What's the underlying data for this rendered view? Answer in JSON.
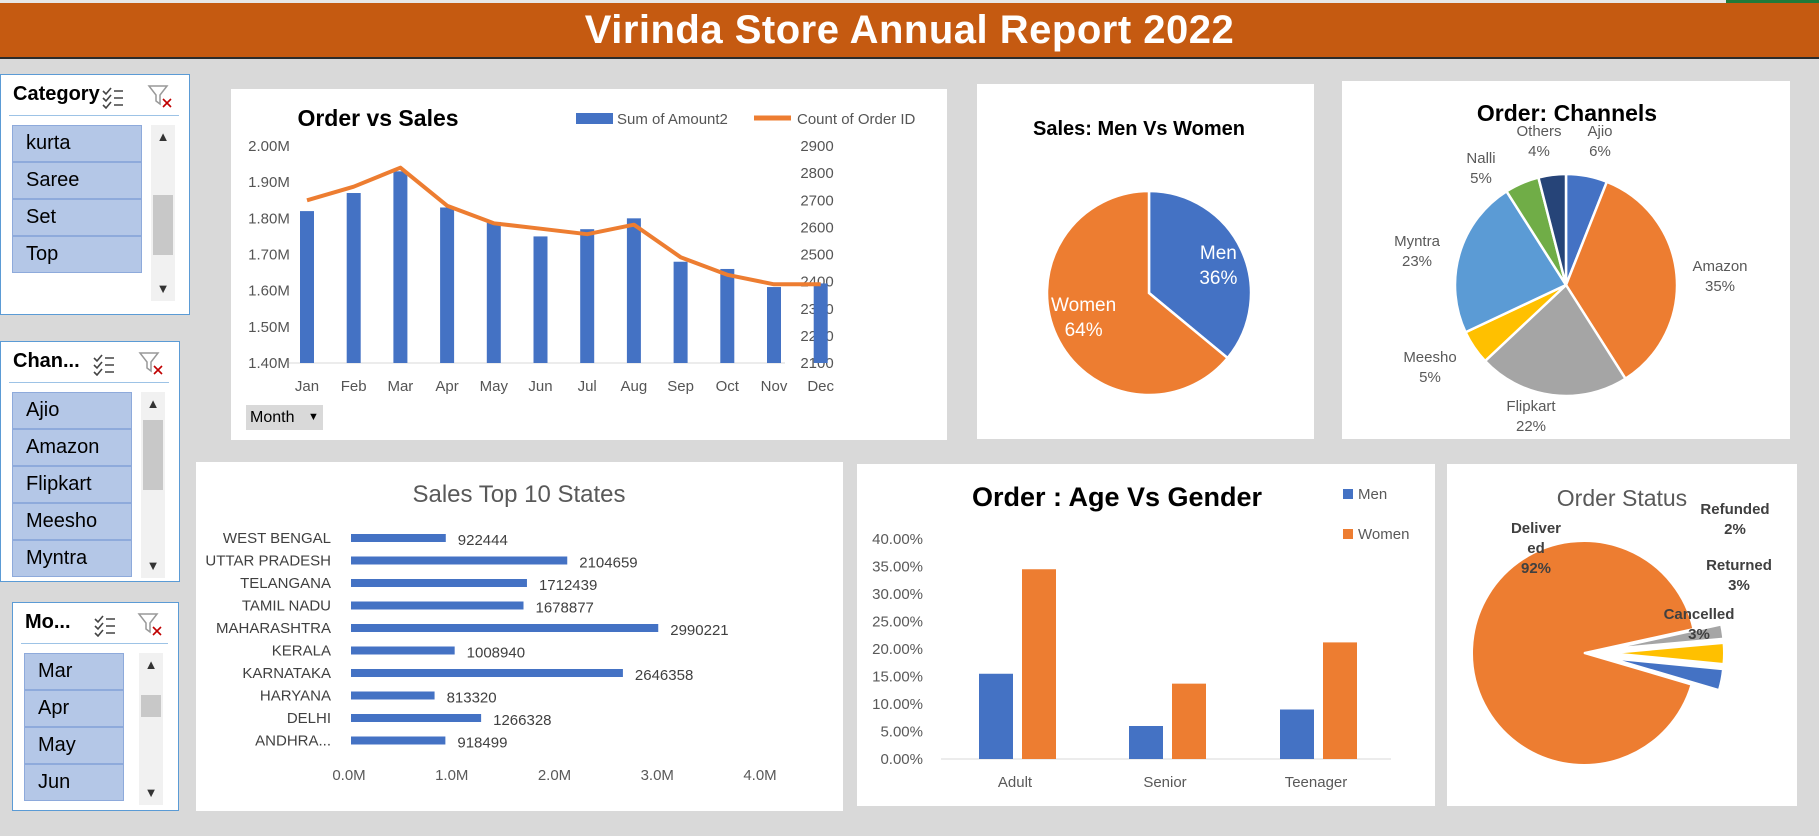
{
  "title": "Virinda Store Annual Report 2022",
  "order_vs_sales": {
    "month_button": "Month",
    "chart_data": {
      "type": "bar",
      "title": "Order vs Sales",
      "categories": [
        "Jan",
        "Feb",
        "Mar",
        "Apr",
        "May",
        "Jun",
        "Jul",
        "Aug",
        "Sep",
        "Oct",
        "Nov",
        "Dec"
      ],
      "series": [
        {
          "name": "Sum of Amount2",
          "type": "bar",
          "axis": "left",
          "color": "#4472c4",
          "values": [
            1.82,
            1.87,
            1.93,
            1.83,
            1.79,
            1.75,
            1.77,
            1.8,
            1.68,
            1.66,
            1.61,
            1.62
          ]
        },
        {
          "name": "Count of Order ID",
          "type": "line",
          "axis": "right",
          "color": "#ed7d31",
          "values": [
            2700,
            2750,
            2820,
            2680,
            2615,
            2595,
            2575,
            2610,
            2490,
            2425,
            2390,
            2390
          ]
        }
      ],
      "y_left": {
        "min": 1.4,
        "max": 2.0,
        "ticks": [
          "1.40M",
          "1.50M",
          "1.60M",
          "1.70M",
          "1.80M",
          "1.90M",
          "2.00M"
        ]
      },
      "y_right": {
        "min": 2100,
        "max": 2900,
        "ticks": [
          "2100",
          "2200",
          "2300",
          "2400",
          "2500",
          "2600",
          "2700",
          "2800",
          "2900"
        ]
      },
      "legend": "top-right"
    }
  },
  "men_women": {
    "chart_data": {
      "type": "pie",
      "title": "Sales: Men Vs Women",
      "slices": [
        {
          "name": "Men",
          "value": 36,
          "label": "36%",
          "color": "#4472c4"
        },
        {
          "name": "Women",
          "value": 64,
          "label": "64%",
          "color": "#ed7d31"
        }
      ]
    }
  },
  "channels": {
    "chart_data": {
      "type": "pie",
      "title": "Order: Channels",
      "slices": [
        {
          "name": "Ajio",
          "value": 6,
          "label": "6%",
          "color": "#4472c4"
        },
        {
          "name": "Amazon",
          "value": 35,
          "label": "35%",
          "color": "#ed7d31"
        },
        {
          "name": "Flipkart",
          "value": 22,
          "label": "22%",
          "color": "#a5a5a5"
        },
        {
          "name": "Meesho",
          "value": 5,
          "label": "5%",
          "color": "#ffc000"
        },
        {
          "name": "Myntra",
          "value": 23,
          "label": "23%",
          "color": "#5b9bd5"
        },
        {
          "name": "Nalli",
          "value": 5,
          "label": "5%",
          "color": "#70ad47"
        },
        {
          "name": "Others",
          "value": 4,
          "label": "4%",
          "color": "#264478"
        }
      ]
    }
  },
  "top_states": {
    "chart_data": {
      "type": "bar",
      "orientation": "horizontal",
      "title": "Sales Top 10 States",
      "categories": [
        "WEST BENGAL",
        "UTTAR PRADESH",
        "TELANGANA",
        "TAMIL NADU",
        "MAHARASHTRA",
        "KERALA",
        "KARNATAKA",
        "HARYANA",
        "DELHI",
        "ANDHRA..."
      ],
      "values": [
        922444,
        2104659,
        1712439,
        1678877,
        2990221,
        1008940,
        2646358,
        813320,
        1266328,
        918499
      ],
      "value_labels": [
        "922444",
        "2104659",
        "1712439",
        "1678877",
        "2990221",
        "1008940",
        "2646358",
        "813320",
        "1266328",
        "918499"
      ],
      "x_ticks": [
        "0.0M",
        "1.0M",
        "2.0M",
        "3.0M",
        "4.0M"
      ],
      "xlim": [
        0,
        4000000
      ],
      "color": "#4472c4"
    }
  },
  "age_gender": {
    "chart_data": {
      "type": "bar",
      "title": "Order : Age Vs Gender",
      "categories": [
        "Adult",
        "Senior",
        "Teenager"
      ],
      "series": [
        {
          "name": "Men",
          "color": "#4472c4",
          "values": [
            15.5,
            6.0,
            9.0
          ]
        },
        {
          "name": "Women",
          "color": "#ed7d31",
          "values": [
            34.5,
            13.7,
            21.2
          ]
        }
      ],
      "ylim": [
        0,
        40
      ],
      "y_ticks": [
        "0.00%",
        "5.00%",
        "10.00%",
        "15.00%",
        "20.00%",
        "25.00%",
        "30.00%",
        "35.00%",
        "40.00%"
      ],
      "legend": "top-right"
    }
  },
  "order_status": {
    "chart_data": {
      "type": "pie",
      "title": "Order Status",
      "slices": [
        {
          "name": "Delivered",
          "label_lines": [
            "Deliver",
            "ed",
            "92%"
          ],
          "value": 92,
          "color": "#ed7d31"
        },
        {
          "name": "Refunded",
          "label_lines": [
            "Refunded",
            "2%"
          ],
          "value": 2,
          "color": "#a5a5a5"
        },
        {
          "name": "Returned",
          "label_lines": [
            "Returned",
            "3%"
          ],
          "value": 3,
          "color": "#ffc000"
        },
        {
          "name": "Cancelled",
          "label_lines": [
            "Cancelled",
            "3%"
          ],
          "value": 3,
          "color": "#4472c4"
        }
      ]
    }
  },
  "slicers": {
    "category": {
      "header": "Category",
      "items": [
        "kurta",
        "Saree",
        "Set",
        "Top"
      ]
    },
    "channel": {
      "header": "Chan...",
      "items": [
        "Ajio",
        "Amazon",
        "Flipkart",
        "Meesho",
        "Myntra"
      ]
    },
    "month": {
      "header": "Mo...",
      "items": [
        "Mar",
        "Apr",
        "May",
        "Jun"
      ]
    }
  }
}
